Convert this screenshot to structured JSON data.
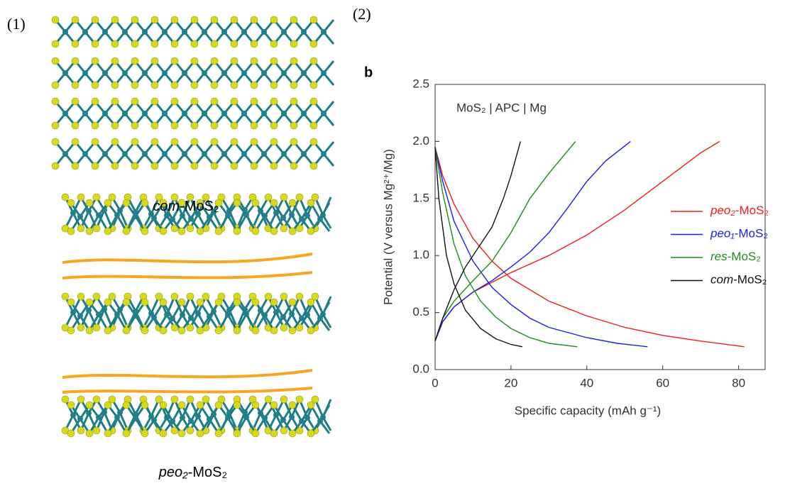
{
  "panels": {
    "left_label": "(1)",
    "right_label": "(2)",
    "top_caption": "com-MoS₂",
    "bottom_caption": "peo₂-MoS₂"
  },
  "chart_data": {
    "type": "line",
    "panel_letter": "b",
    "annotation": "MoS₂ | APC | Mg",
    "xlabel": "Specific capacity (mAh g⁻¹)",
    "ylabel": "Potential (V versus Mg²⁺/Mg)",
    "xlim": [
      0,
      87
    ],
    "ylim": [
      0,
      2.5
    ],
    "xticks": [
      0,
      20,
      40,
      60,
      80
    ],
    "yticks": [
      {
        "value": 0,
        "label": "0.0"
      },
      0.5,
      {
        "value": 1,
        "label": "1.0"
      },
      1.5,
      {
        "value": 2,
        "label": "2.0"
      },
      2.5
    ],
    "legend": "right",
    "series": [
      {
        "name": "peo₂-MoS₂",
        "color": "#ee1c1c",
        "x": [
          0,
          2,
          5,
          10,
          15,
          20,
          30,
          40,
          50,
          60,
          70,
          81.5,
          null,
          0,
          2,
          5,
          10,
          20,
          30,
          40,
          50,
          60,
          70,
          75
        ],
        "values": [
          1.95,
          1.7,
          1.45,
          1.15,
          0.95,
          0.8,
          0.6,
          0.47,
          0.37,
          0.3,
          0.25,
          0.2,
          null,
          0.25,
          0.42,
          0.55,
          0.68,
          0.85,
          1.0,
          1.18,
          1.4,
          1.65,
          1.9,
          2.0
        ]
      },
      {
        "name": "peo₁-MoS₂",
        "color": "#1c1cee",
        "x": [
          0,
          2,
          5,
          10,
          15,
          20,
          25,
          30,
          40,
          48,
          56,
          null,
          0,
          2,
          5,
          10,
          15,
          20,
          25,
          30,
          35,
          40,
          45,
          51.5
        ],
        "values": [
          1.95,
          1.65,
          1.3,
          0.95,
          0.72,
          0.57,
          0.45,
          0.37,
          0.28,
          0.23,
          0.2,
          null,
          0.25,
          0.42,
          0.55,
          0.68,
          0.78,
          0.9,
          1.03,
          1.2,
          1.42,
          1.65,
          1.83,
          2.0
        ]
      },
      {
        "name": "res-MoS₂",
        "color": "#1f8a1f",
        "x": [
          0,
          2,
          5,
          8,
          12,
          16,
          20,
          25,
          30,
          37.5,
          null,
          0,
          2,
          5,
          10,
          15,
          20,
          25,
          30,
          34,
          37
        ],
        "values": [
          1.95,
          1.55,
          1.1,
          0.82,
          0.6,
          0.46,
          0.36,
          0.28,
          0.23,
          0.2,
          null,
          0.25,
          0.45,
          0.6,
          0.78,
          0.95,
          1.2,
          1.5,
          1.72,
          1.88,
          2.0
        ]
      },
      {
        "name": "com-MoS₂",
        "color": "#111111",
        "x": [
          0,
          1,
          3,
          5,
          8,
          12,
          16,
          20,
          23,
          null,
          0,
          2,
          5,
          8,
          12,
          15,
          18,
          20,
          22.5
        ],
        "values": [
          1.95,
          1.5,
          1.0,
          0.75,
          0.52,
          0.36,
          0.27,
          0.22,
          0.2,
          null,
          0.25,
          0.45,
          0.7,
          0.9,
          1.1,
          1.25,
          1.5,
          1.7,
          2.0
        ]
      }
    ]
  }
}
